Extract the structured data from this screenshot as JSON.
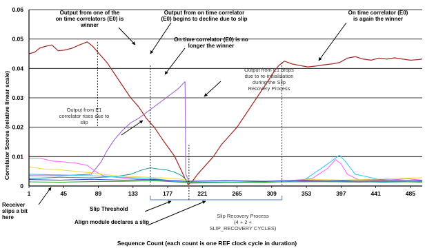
{
  "chart_data": {
    "type": "line",
    "xlabel": "Sequence Count (each count is one REF clock cycle in duration)",
    "ylabel": "Correlator Scores (relative linear scale)",
    "ylim": [
      0,
      0.06
    ],
    "yticks": [
      "0",
      "0.01",
      "0.02",
      "0.03",
      "0.04",
      "0.05",
      "0.06"
    ],
    "xticks": [
      "1",
      "45",
      "89",
      "133",
      "177",
      "221",
      "265",
      "309",
      "353",
      "397",
      "441",
      "485"
    ],
    "xlim": [
      1,
      500
    ],
    "grid": true,
    "series": [
      {
        "color": "#a0302a",
        "values": [
          [
            1,
            0.045
          ],
          [
            8,
            0.0455
          ],
          [
            15,
            0.047
          ],
          [
            22,
            0.0475
          ],
          [
            30,
            0.048
          ],
          [
            38,
            0.046
          ],
          [
            45,
            0.0462
          ],
          [
            55,
            0.0468
          ],
          [
            65,
            0.048
          ],
          [
            75,
            0.049
          ],
          [
            82,
            0.0475
          ],
          [
            90,
            0.045
          ],
          [
            100,
            0.042
          ],
          [
            110,
            0.038
          ],
          [
            120,
            0.034
          ],
          [
            130,
            0.03
          ],
          [
            140,
            0.027
          ],
          [
            150,
            0.023
          ],
          [
            160,
            0.02
          ],
          [
            170,
            0.016
          ],
          [
            178,
            0.013
          ],
          [
            186,
            0.01
          ],
          [
            193,
            0.006
          ],
          [
            200,
            0.002
          ],
          [
            203,
            0.0005
          ],
          [
            208,
            0.0015
          ],
          [
            215,
            0.004
          ],
          [
            225,
            0.007
          ],
          [
            235,
            0.01
          ],
          [
            245,
            0.014
          ],
          [
            255,
            0.017
          ],
          [
            265,
            0.02
          ],
          [
            275,
            0.024
          ],
          [
            285,
            0.028
          ],
          [
            295,
            0.032
          ],
          [
            305,
            0.036
          ],
          [
            312,
            0.039
          ],
          [
            318,
            0.041
          ],
          [
            325,
            0.0425
          ],
          [
            335,
            0.0415
          ],
          [
            345,
            0.041
          ],
          [
            355,
            0.0405
          ],
          [
            365,
            0.0408
          ],
          [
            375,
            0.0412
          ],
          [
            385,
            0.0415
          ],
          [
            395,
            0.042
          ],
          [
            405,
            0.0435
          ],
          [
            415,
            0.044
          ],
          [
            425,
            0.0432
          ],
          [
            435,
            0.0428
          ],
          [
            445,
            0.0435
          ],
          [
            455,
            0.0432
          ],
          [
            465,
            0.0436
          ],
          [
            475,
            0.0432
          ],
          [
            485,
            0.0428
          ],
          [
            495,
            0.043
          ],
          [
            500,
            0.0432
          ]
        ]
      },
      {
        "color": "#a066cc",
        "values": [
          [
            1,
            0.0035
          ],
          [
            40,
            0.0035
          ],
          [
            80,
            0.004
          ],
          [
            92,
            0.008
          ],
          [
            100,
            0.012
          ],
          [
            110,
            0.016
          ],
          [
            120,
            0.019
          ],
          [
            130,
            0.0215
          ],
          [
            140,
            0.023
          ],
          [
            150,
            0.025
          ],
          [
            160,
            0.027
          ],
          [
            170,
            0.029
          ],
          [
            180,
            0.031
          ],
          [
            190,
            0.033
          ],
          [
            199,
            0.0355
          ],
          [
            200,
            0.004
          ],
          [
            205,
            0.001
          ],
          [
            220,
            0.0012
          ],
          [
            260,
            0.0013
          ],
          [
            300,
            0.0012
          ],
          [
            340,
            0.0018
          ],
          [
            380,
            0.0015
          ],
          [
            420,
            0.0013
          ],
          [
            460,
            0.0016
          ],
          [
            500,
            0.0014
          ]
        ]
      },
      {
        "color": "#ff66ff",
        "values": [
          [
            1,
            0.0095
          ],
          [
            15,
            0.0095
          ],
          [
            30,
            0.0085
          ],
          [
            45,
            0.0082
          ],
          [
            60,
            0.0078
          ],
          [
            75,
            0.007
          ],
          [
            85,
            0.005
          ],
          [
            95,
            0.0035
          ],
          [
            110,
            0.003
          ],
          [
            130,
            0.0025
          ],
          [
            160,
            0.002
          ],
          [
            190,
            0.0015
          ],
          [
            210,
            0.001
          ],
          [
            250,
            0.0012
          ],
          [
            290,
            0.0012
          ],
          [
            330,
            0.0018
          ],
          [
            360,
            0.0025
          ],
          [
            380,
            0.006
          ],
          [
            390,
            0.009
          ],
          [
            397,
            0.0075
          ],
          [
            405,
            0.004
          ],
          [
            420,
            0.002
          ],
          [
            450,
            0.0018
          ],
          [
            480,
            0.0025
          ],
          [
            500,
            0.002
          ]
        ]
      },
      {
        "color": "#2a9a9a",
        "values": [
          [
            1,
            0.0025
          ],
          [
            40,
            0.003
          ],
          [
            80,
            0.0028
          ],
          [
            110,
            0.0032
          ],
          [
            130,
            0.004
          ],
          [
            145,
            0.0055
          ],
          [
            155,
            0.0062
          ],
          [
            165,
            0.0058
          ],
          [
            175,
            0.0055
          ],
          [
            185,
            0.0048
          ],
          [
            195,
            0.0035
          ],
          [
            205,
            0.001
          ],
          [
            250,
            0.0012
          ],
          [
            300,
            0.0015
          ],
          [
            350,
            0.0014
          ],
          [
            400,
            0.0016
          ],
          [
            450,
            0.0013
          ],
          [
            500,
            0.0015
          ]
        ]
      },
      {
        "color": "#33ccff",
        "values": [
          [
            1,
            0.004
          ],
          [
            40,
            0.0038
          ],
          [
            80,
            0.0035
          ],
          [
            120,
            0.003
          ],
          [
            160,
            0.0025
          ],
          [
            200,
            0.0012
          ],
          [
            250,
            0.0014
          ],
          [
            300,
            0.0013
          ],
          [
            350,
            0.002
          ],
          [
            380,
            0.0075
          ],
          [
            395,
            0.0105
          ],
          [
            402,
            0.0085
          ],
          [
            415,
            0.004
          ],
          [
            450,
            0.002
          ],
          [
            500,
            0.0018
          ]
        ]
      },
      {
        "color": "#f0e040",
        "values": [
          [
            1,
            0.0065
          ],
          [
            20,
            0.0058
          ],
          [
            40,
            0.0055
          ],
          [
            60,
            0.005
          ],
          [
            80,
            0.0045
          ],
          [
            110,
            0.0035
          ],
          [
            150,
            0.003
          ],
          [
            190,
            0.0025
          ],
          [
            210,
            0.0015
          ],
          [
            260,
            0.0018
          ],
          [
            310,
            0.0016
          ],
          [
            360,
            0.0022
          ],
          [
            400,
            0.002
          ],
          [
            450,
            0.0024
          ],
          [
            500,
            0.0028
          ]
        ]
      },
      {
        "color": "#3344cc",
        "values": [
          [
            1,
            0.0022
          ],
          [
            40,
            0.002
          ],
          [
            80,
            0.0023
          ],
          [
            120,
            0.002
          ],
          [
            160,
            0.0022
          ],
          [
            200,
            0.0016
          ],
          [
            250,
            0.0018
          ],
          [
            300,
            0.0016
          ],
          [
            350,
            0.002
          ],
          [
            400,
            0.0019
          ],
          [
            450,
            0.0021
          ],
          [
            500,
            0.0018
          ]
        ]
      },
      {
        "color": "#33aa33",
        "values": [
          [
            1,
            0.0014
          ],
          [
            40,
            0.0013
          ],
          [
            80,
            0.0015
          ],
          [
            120,
            0.0016
          ],
          [
            160,
            0.0018
          ],
          [
            200,
            0.0012
          ],
          [
            250,
            0.0012
          ],
          [
            300,
            0.0013
          ],
          [
            350,
            0.0015
          ],
          [
            400,
            0.0014
          ],
          [
            450,
            0.0016
          ],
          [
            500,
            0.0013
          ]
        ]
      }
    ],
    "annotations": [
      {
        "lines": [
          "Output from one of the",
          "on time correlators (E0) is",
          "winner"
        ]
      },
      {
        "lines": [
          "Output from on time correlator",
          "(E0) begins to decline due to slip"
        ]
      },
      {
        "lines": [
          "On time correlator (E0) is no",
          "longer the winner"
        ]
      },
      {
        "lines": [
          "On time correlator (E0)",
          "is again the winner"
        ]
      },
      {
        "lines": [
          "Output from E1",
          "correlator rises due to",
          "slip"
        ]
      },
      {
        "lines": [
          "Output from E1 drops",
          "due to re-initialization",
          "during  the Slip",
          "Recovery Process"
        ]
      },
      {
        "lines": [
          "Receiver",
          "slips a bit",
          "here"
        ]
      },
      {
        "lines": [
          "Slip Threshold"
        ]
      },
      {
        "lines": [
          "Align module declares a slip"
        ]
      },
      {
        "lines": [
          "Slip Recovery Process",
          "(4 + 2 +",
          "SLIP_RECOVERY CYCLES)"
        ]
      }
    ]
  }
}
